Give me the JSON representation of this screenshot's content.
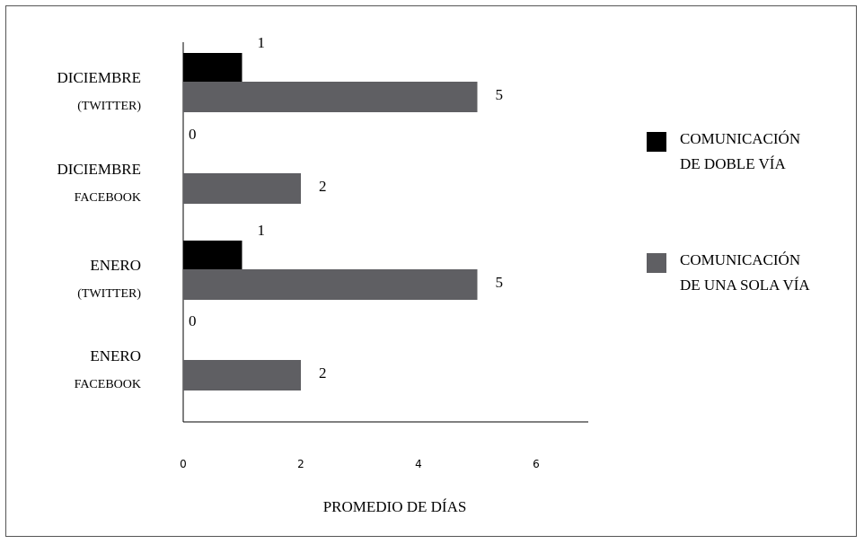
{
  "chart_data": {
    "type": "bar",
    "orientation": "horizontal",
    "categories": [
      {
        "line1": "DICIEMBRE",
        "line2": "(TWITTER)"
      },
      {
        "line1": "DICIEMBRE",
        "line2": "FACEBOOK"
      },
      {
        "line1": "ENERO",
        "line2": "(TWITTER)"
      },
      {
        "line1": "ENERO",
        "line2": "FACEBOOK"
      }
    ],
    "series": [
      {
        "name": "COMUNICACIÓN DE DOBLE VÍA",
        "name_lines": [
          "COMUNICACIÓN",
          "DE DOBLE VÍA"
        ],
        "color": "#000000",
        "values": [
          1,
          0,
          1,
          0
        ]
      },
      {
        "name": "COMUNICACIÓN DE UNA SOLA VÍA",
        "name_lines": [
          "COMUNICACIÓN",
          "DE UNA SOLA VÍA"
        ],
        "color": "#5f5f63",
        "values": [
          5,
          2,
          5,
          2
        ]
      }
    ],
    "data_labels": [
      [
        "1",
        "0",
        "1",
        "0"
      ],
      [
        "5",
        "2",
        "5",
        "2"
      ]
    ],
    "xlabel": "PROMEDIO DE DÍAS",
    "xticks": [
      "0",
      "2",
      "4",
      "6"
    ],
    "xlim": [
      0,
      6.8
    ],
    "grid": false,
    "legend_position": "right"
  }
}
